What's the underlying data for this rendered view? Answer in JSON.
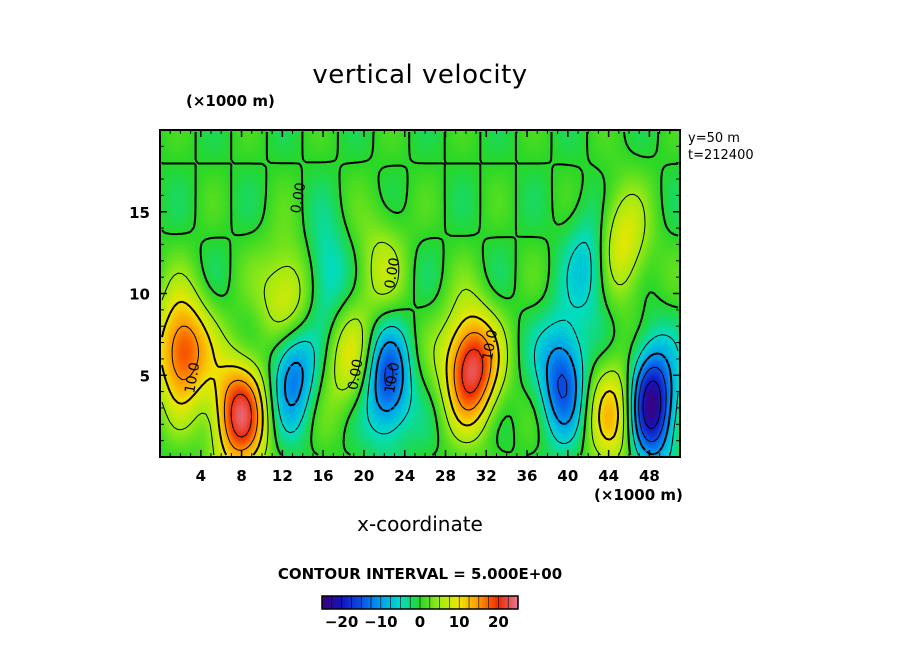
{
  "chart_data": {
    "type": "heatmap",
    "title": "vertical velocity",
    "xlabel": "x-coordinate",
    "x_unit": "(×1000 m)",
    "y_unit": "(×1000 m)",
    "info_lines": [
      "y=50  m",
      "t=212400"
    ],
    "contour_interval_label": "CONTOUR INTERVAL = 5.000E+00",
    "xlim": [
      0,
      51
    ],
    "ylim": [
      0,
      20
    ],
    "x_ticks": [
      4,
      8,
      12,
      16,
      20,
      24,
      28,
      32,
      36,
      40,
      44,
      48
    ],
    "y_ticks": [
      5,
      10,
      15
    ],
    "colorbar": {
      "range": [
        -25,
        25
      ],
      "ticks": [
        -20,
        -10,
        0,
        10,
        20
      ],
      "tick_labels": [
        "−20",
        "−10",
        "0",
        "10",
        "20"
      ]
    },
    "contour_labels": [
      {
        "text": "10.0",
        "x": 3.6,
        "y": 4.8
      },
      {
        "text": "0.00",
        "x": 14.0,
        "y": 15.8
      },
      {
        "text": "0.00",
        "x": 23.2,
        "y": 11.2
      },
      {
        "text": "0.00",
        "x": 19.6,
        "y": 5.0
      },
      {
        "text": "10.0",
        "x": 23.2,
        "y": 4.8
      },
      {
        "text": "10.0",
        "x": 32.8,
        "y": 6.8
      }
    ],
    "features": [
      {
        "kind": "updraft",
        "x": 2.2,
        "y": 6.5,
        "peak": 20
      },
      {
        "kind": "updraft",
        "x": 7.8,
        "y": 2.6,
        "peak": 22
      },
      {
        "kind": "downdraft",
        "x": 13.0,
        "y": 5.5,
        "peak": -15
      },
      {
        "kind": "updraft",
        "x": 18.3,
        "y": 6.0,
        "peak": 8
      },
      {
        "kind": "downdraft",
        "x": 22.3,
        "y": 4.5,
        "peak": -16
      },
      {
        "kind": "updraft",
        "x": 30.5,
        "y": 5.5,
        "peak": 24
      },
      {
        "kind": "downdraft",
        "x": 39.5,
        "y": 4.8,
        "peak": -16
      },
      {
        "kind": "updraft",
        "x": 44.5,
        "y": 2.8,
        "peak": 12
      },
      {
        "kind": "downdraft",
        "x": 48.2,
        "y": 3.3,
        "peak": -25
      },
      {
        "kind": "updraft",
        "x": 12.6,
        "y": 9.5,
        "peak": 12
      },
      {
        "kind": "updraft",
        "x": 45.3,
        "y": 13.0,
        "peak": 10
      },
      {
        "kind": "downdraft",
        "x": 16.2,
        "y": 10.8,
        "peak": -8
      },
      {
        "kind": "downdraft",
        "x": 42.3,
        "y": 11.8,
        "peak": -8
      },
      {
        "kind": "updraft",
        "x": 21.5,
        "y": 11.5,
        "peak": 6
      }
    ]
  },
  "colors": {
    "zero": "#20d020",
    "background": "#ffffff",
    "frame": "#000000"
  }
}
